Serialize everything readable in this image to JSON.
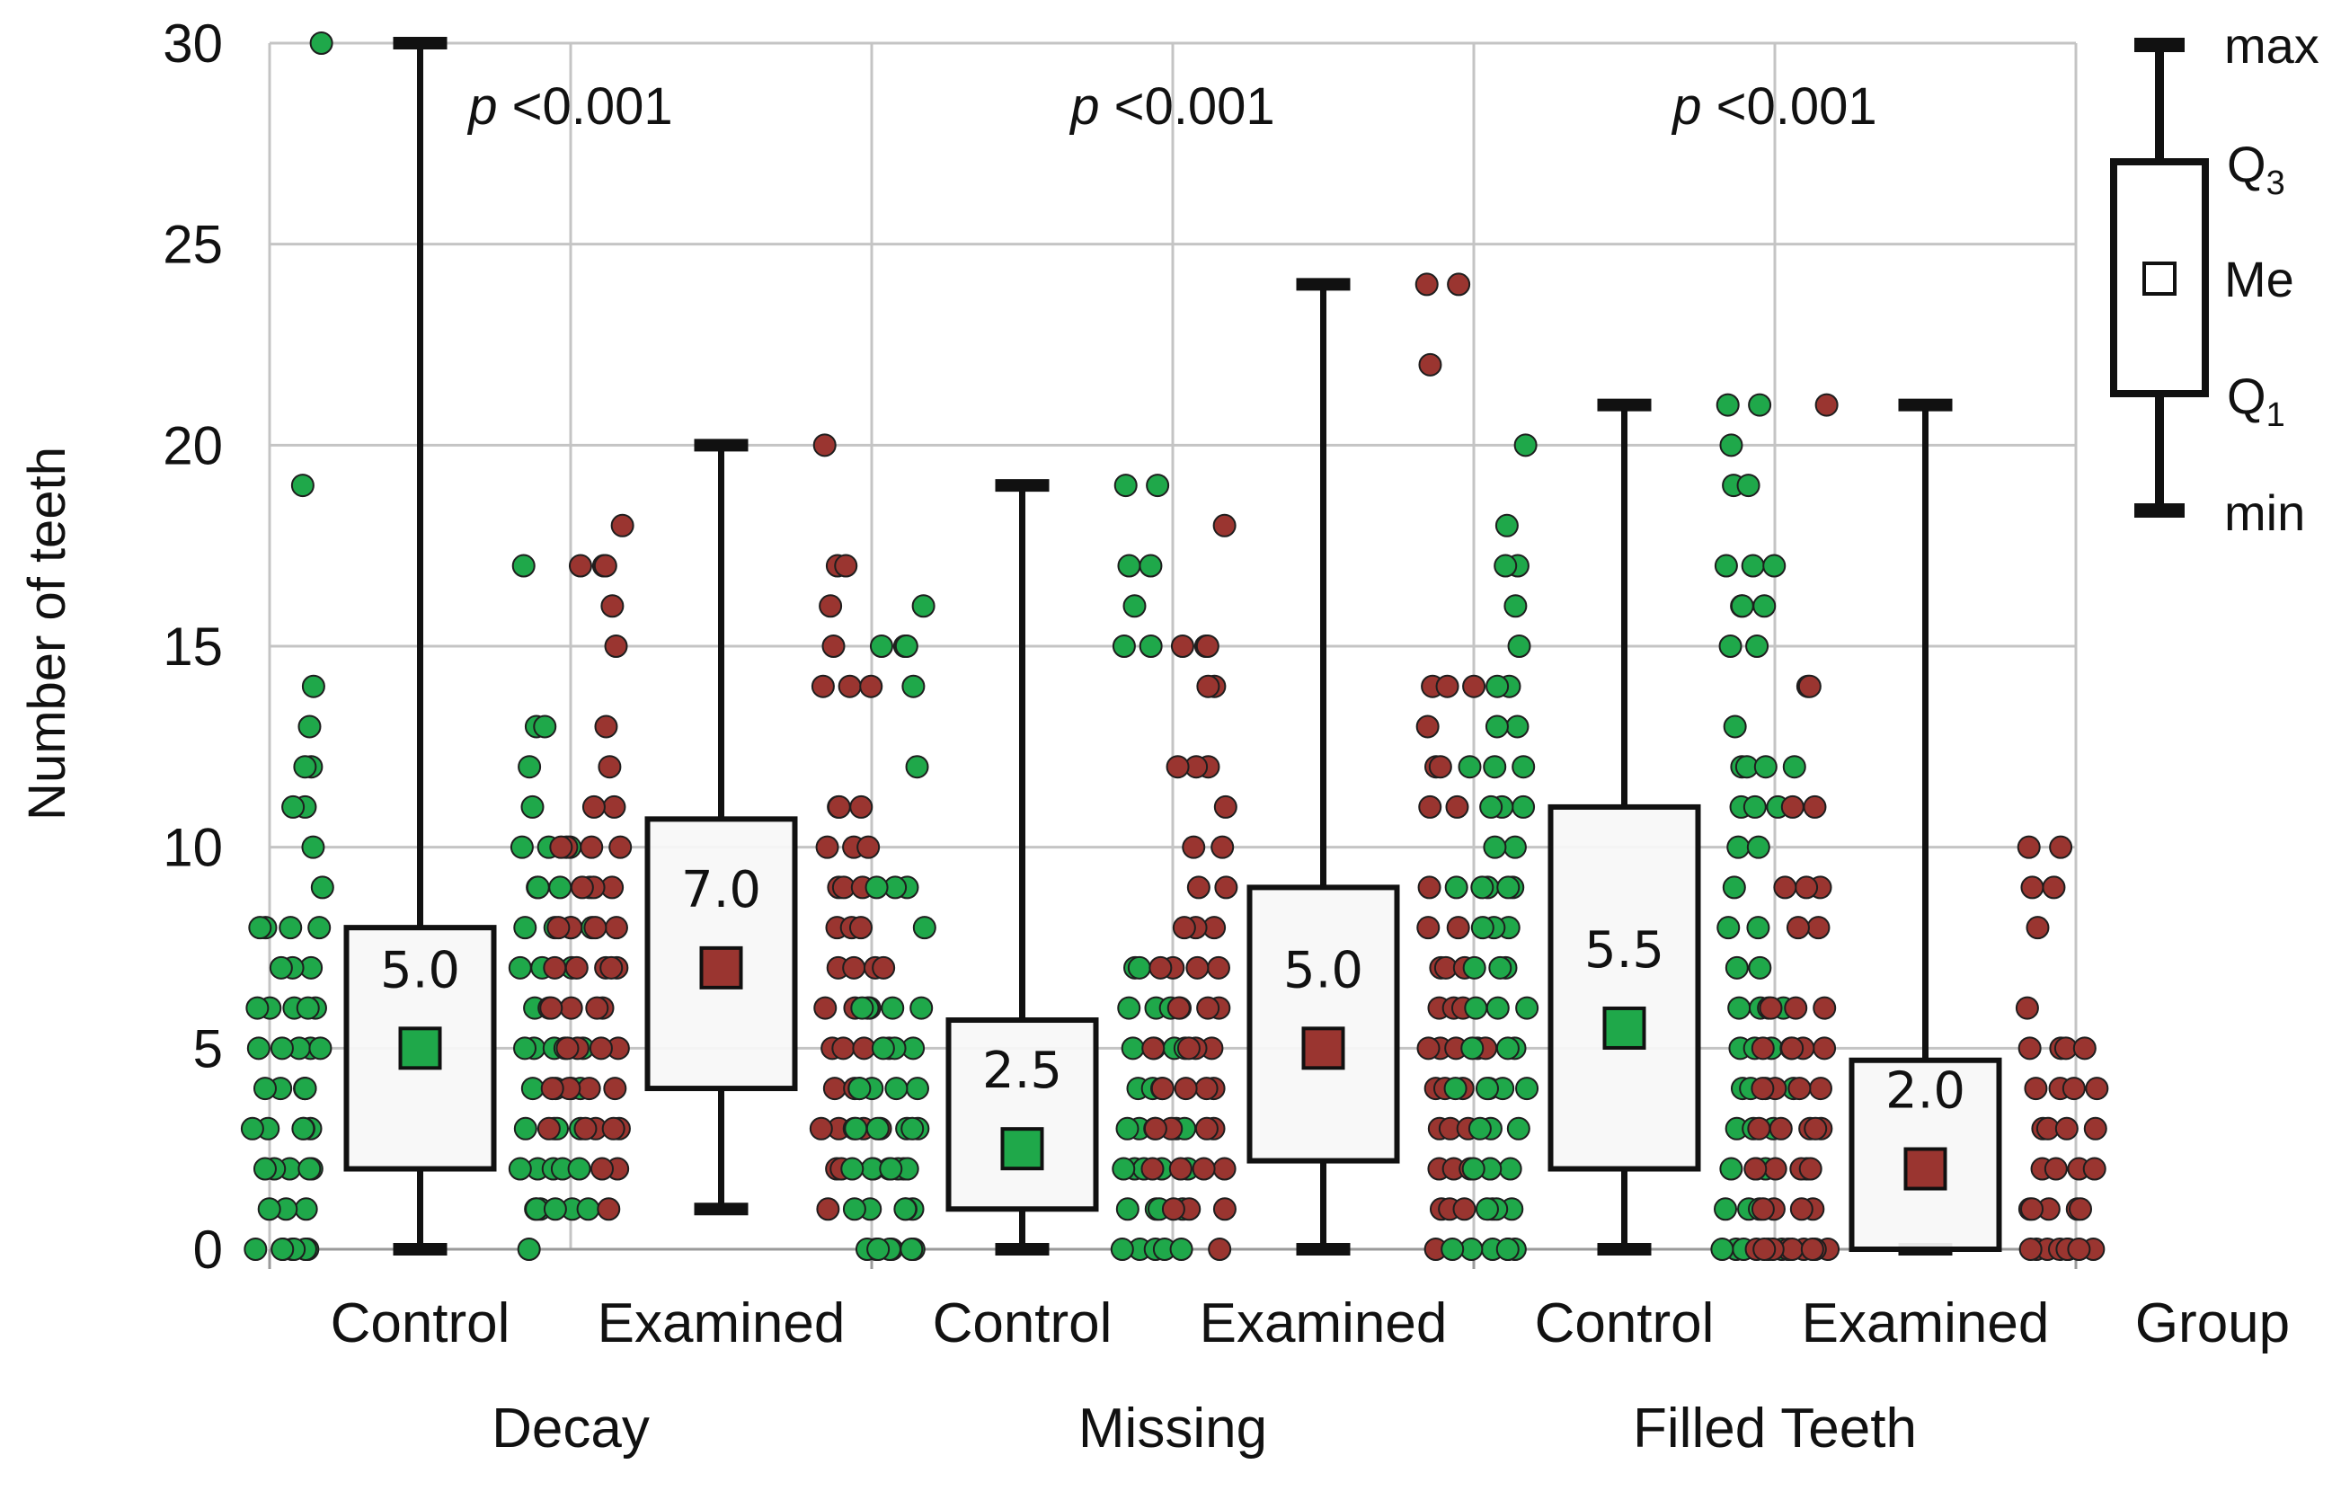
{
  "chart_data": {
    "type": "box",
    "ylabel": "Number of teeth",
    "ylim": [
      0,
      30
    ],
    "yticks": [
      0,
      5,
      10,
      15,
      20,
      25,
      30
    ],
    "grid": true,
    "colors": {
      "Control": "#1fa84a",
      "Examined": "#9a3530"
    },
    "group_axis_label": "Group",
    "categories": [
      "Decay",
      "Missing",
      "Filled Teeth"
    ],
    "panels": [
      {
        "category": "Decay",
        "p_prefix": "p",
        "p_text": "<0.001",
        "groups": [
          {
            "name": "Control",
            "min": 0,
            "q1": 2,
            "median": 5.0,
            "q3": 8,
            "max": 30,
            "median_label": "5.0",
            "left_points": [
              30,
              19,
              14,
              13,
              12,
              12,
              11,
              11,
              10,
              9,
              8,
              8,
              8,
              8,
              7,
              7,
              7,
              6,
              6,
              6,
              6,
              6,
              5,
              5,
              5,
              5,
              5,
              4,
              4,
              4,
              4,
              4,
              3,
              3,
              3,
              3,
              3,
              2,
              2,
              2,
              2,
              2,
              1,
              1,
              1,
              0,
              0,
              0,
              0,
              0,
              0,
              0
            ],
            "right_points": [
              17,
              13,
              13,
              12,
              11,
              10,
              10,
              10,
              9,
              9,
              9,
              9,
              8,
              8,
              8,
              8,
              7,
              7,
              7,
              6,
              6,
              5,
              5,
              5,
              5,
              5,
              4,
              4,
              4,
              4,
              3,
              3,
              3,
              3,
              2,
              2,
              2,
              2,
              2,
              1,
              1,
              1,
              1,
              1,
              1,
              0
            ]
          },
          {
            "name": "Examined",
            "min": 1,
            "q1": 4,
            "median": 7.0,
            "q3": 10.7,
            "max": 20,
            "median_label": "7.0",
            "left_points": [
              18,
              17,
              17,
              17,
              16,
              15,
              13,
              12,
              11,
              11,
              10,
              10,
              10,
              10,
              9,
              9,
              9,
              8,
              8,
              8,
              8,
              7,
              7,
              7,
              7,
              7,
              6,
              6,
              6,
              6,
              5,
              5,
              5,
              5,
              4,
              4,
              4,
              4,
              3,
              3,
              3,
              3,
              3,
              2,
              2,
              1
            ],
            "right_points": [
              20,
              17,
              17,
              16,
              15,
              14,
              14,
              14,
              11,
              11,
              11,
              10,
              10,
              10,
              9,
              9,
              9,
              8,
              8,
              8,
              7,
              7,
              7,
              7,
              6,
              6,
              6,
              5,
              5,
              5,
              5,
              4,
              4,
              4,
              3,
              3,
              3,
              3,
              3,
              2,
              2,
              2,
              2,
              1
            ]
          }
        ]
      },
      {
        "category": "Missing",
        "p_prefix": "p",
        "p_text": "<0.001",
        "groups": [
          {
            "name": "Control",
            "min": 0,
            "q1": 1,
            "median": 2.5,
            "q3": 5.7,
            "max": 19,
            "median_label": "2.5",
            "left_points": [
              16,
              15,
              15,
              15,
              14,
              12,
              9,
              9,
              9,
              8,
              6,
              6,
              6,
              6,
              5,
              5,
              5,
              4,
              4,
              4,
              4,
              3,
              3,
              3,
              3,
              3,
              2,
              2,
              2,
              2,
              2,
              2,
              1,
              1,
              1,
              1,
              1,
              0,
              0,
              0,
              0,
              0,
              0,
              0
            ],
            "right_points": [
              19,
              19,
              17,
              17,
              16,
              15,
              15,
              7,
              7,
              6,
              6,
              6,
              6,
              5,
              5,
              5,
              5,
              4,
              4,
              4,
              3,
              3,
              3,
              3,
              3,
              2,
              2,
              2,
              2,
              2,
              1,
              1,
              1,
              1,
              0,
              0,
              0,
              0,
              0
            ]
          },
          {
            "name": "Examined",
            "min": 0,
            "q1": 2.2,
            "median": 5.0,
            "q3": 9,
            "max": 24,
            "median_label": "5.0",
            "left_points": [
              18,
              15,
              15,
              15,
              14,
              14,
              12,
              12,
              12,
              11,
              10,
              10,
              9,
              9,
              8,
              8,
              8,
              7,
              7,
              7,
              7,
              6,
              6,
              6,
              5,
              5,
              5,
              5,
              4,
              4,
              4,
              4,
              3,
              3,
              3,
              3,
              2,
              2,
              2,
              2,
              1,
              1,
              1,
              0
            ],
            "right_points": [
              24,
              24,
              22,
              14,
              14,
              14,
              13,
              12,
              12,
              11,
              11,
              9,
              8,
              8,
              7,
              7,
              7,
              6,
              6,
              6,
              5,
              5,
              5,
              5,
              5,
              4,
              4,
              4,
              4,
              3,
              3,
              3,
              2,
              2,
              2,
              2,
              1,
              1,
              1,
              1,
              0
            ]
          }
        ]
      },
      {
        "category": "Filled Teeth",
        "p_prefix": "p",
        "p_text": "<0.001",
        "groups": [
          {
            "name": "Control",
            "min": 0,
            "q1": 2,
            "median": 5.5,
            "q3": 11,
            "max": 21,
            "median_label": "5.5",
            "left_points": [
              20,
              18,
              17,
              17,
              16,
              15,
              14,
              14,
              13,
              13,
              12,
              12,
              12,
              11,
              11,
              11,
              10,
              10,
              9,
              9,
              9,
              9,
              9,
              8,
              8,
              8,
              7,
              7,
              7,
              6,
              6,
              6,
              5,
              5,
              5,
              4,
              4,
              4,
              4,
              3,
              3,
              3,
              2,
              2,
              2,
              1,
              1,
              1,
              0,
              0,
              0,
              0,
              0,
              0
            ],
            "right_points": [
              21,
              21,
              20,
              19,
              19,
              17,
              17,
              17,
              16,
              16,
              16,
              15,
              15,
              13,
              12,
              12,
              12,
              12,
              11,
              11,
              11,
              10,
              10,
              9,
              8,
              8,
              7,
              7,
              6,
              6,
              6,
              6,
              5,
              5,
              5,
              5,
              4,
              4,
              4,
              4,
              3,
              3,
              3,
              2,
              2,
              2,
              1,
              1,
              1,
              0,
              0,
              0,
              0,
              0
            ]
          },
          {
            "name": "Examined",
            "min": 0,
            "q1": 0,
            "median": 2.0,
            "q3": 4.7,
            "max": 21,
            "median_label": "2.0",
            "left_points": [
              21,
              14,
              14,
              11,
              11,
              9,
              9,
              9,
              8,
              8,
              6,
              6,
              6,
              5,
              5,
              5,
              5,
              4,
              4,
              4,
              4,
              3,
              3,
              3,
              3,
              3,
              2,
              2,
              2,
              2,
              2,
              1,
              1,
              1,
              1,
              0,
              0,
              0,
              0,
              0,
              0,
              0,
              0,
              0
            ],
            "right_points": [
              10,
              10,
              9,
              9,
              8,
              6,
              5,
              5,
              5,
              5,
              4,
              4,
              4,
              4,
              3,
              3,
              3,
              3,
              2,
              2,
              2,
              2,
              1,
              1,
              1,
              1,
              1,
              0,
              0,
              0,
              0,
              0,
              0,
              0,
              0
            ]
          }
        ]
      }
    ]
  },
  "legend": {
    "labels": {
      "max": "max",
      "q3": "Q",
      "q3_sub": "3",
      "me": "Me",
      "q1": "Q",
      "q1_sub": "1",
      "min": "min"
    }
  }
}
